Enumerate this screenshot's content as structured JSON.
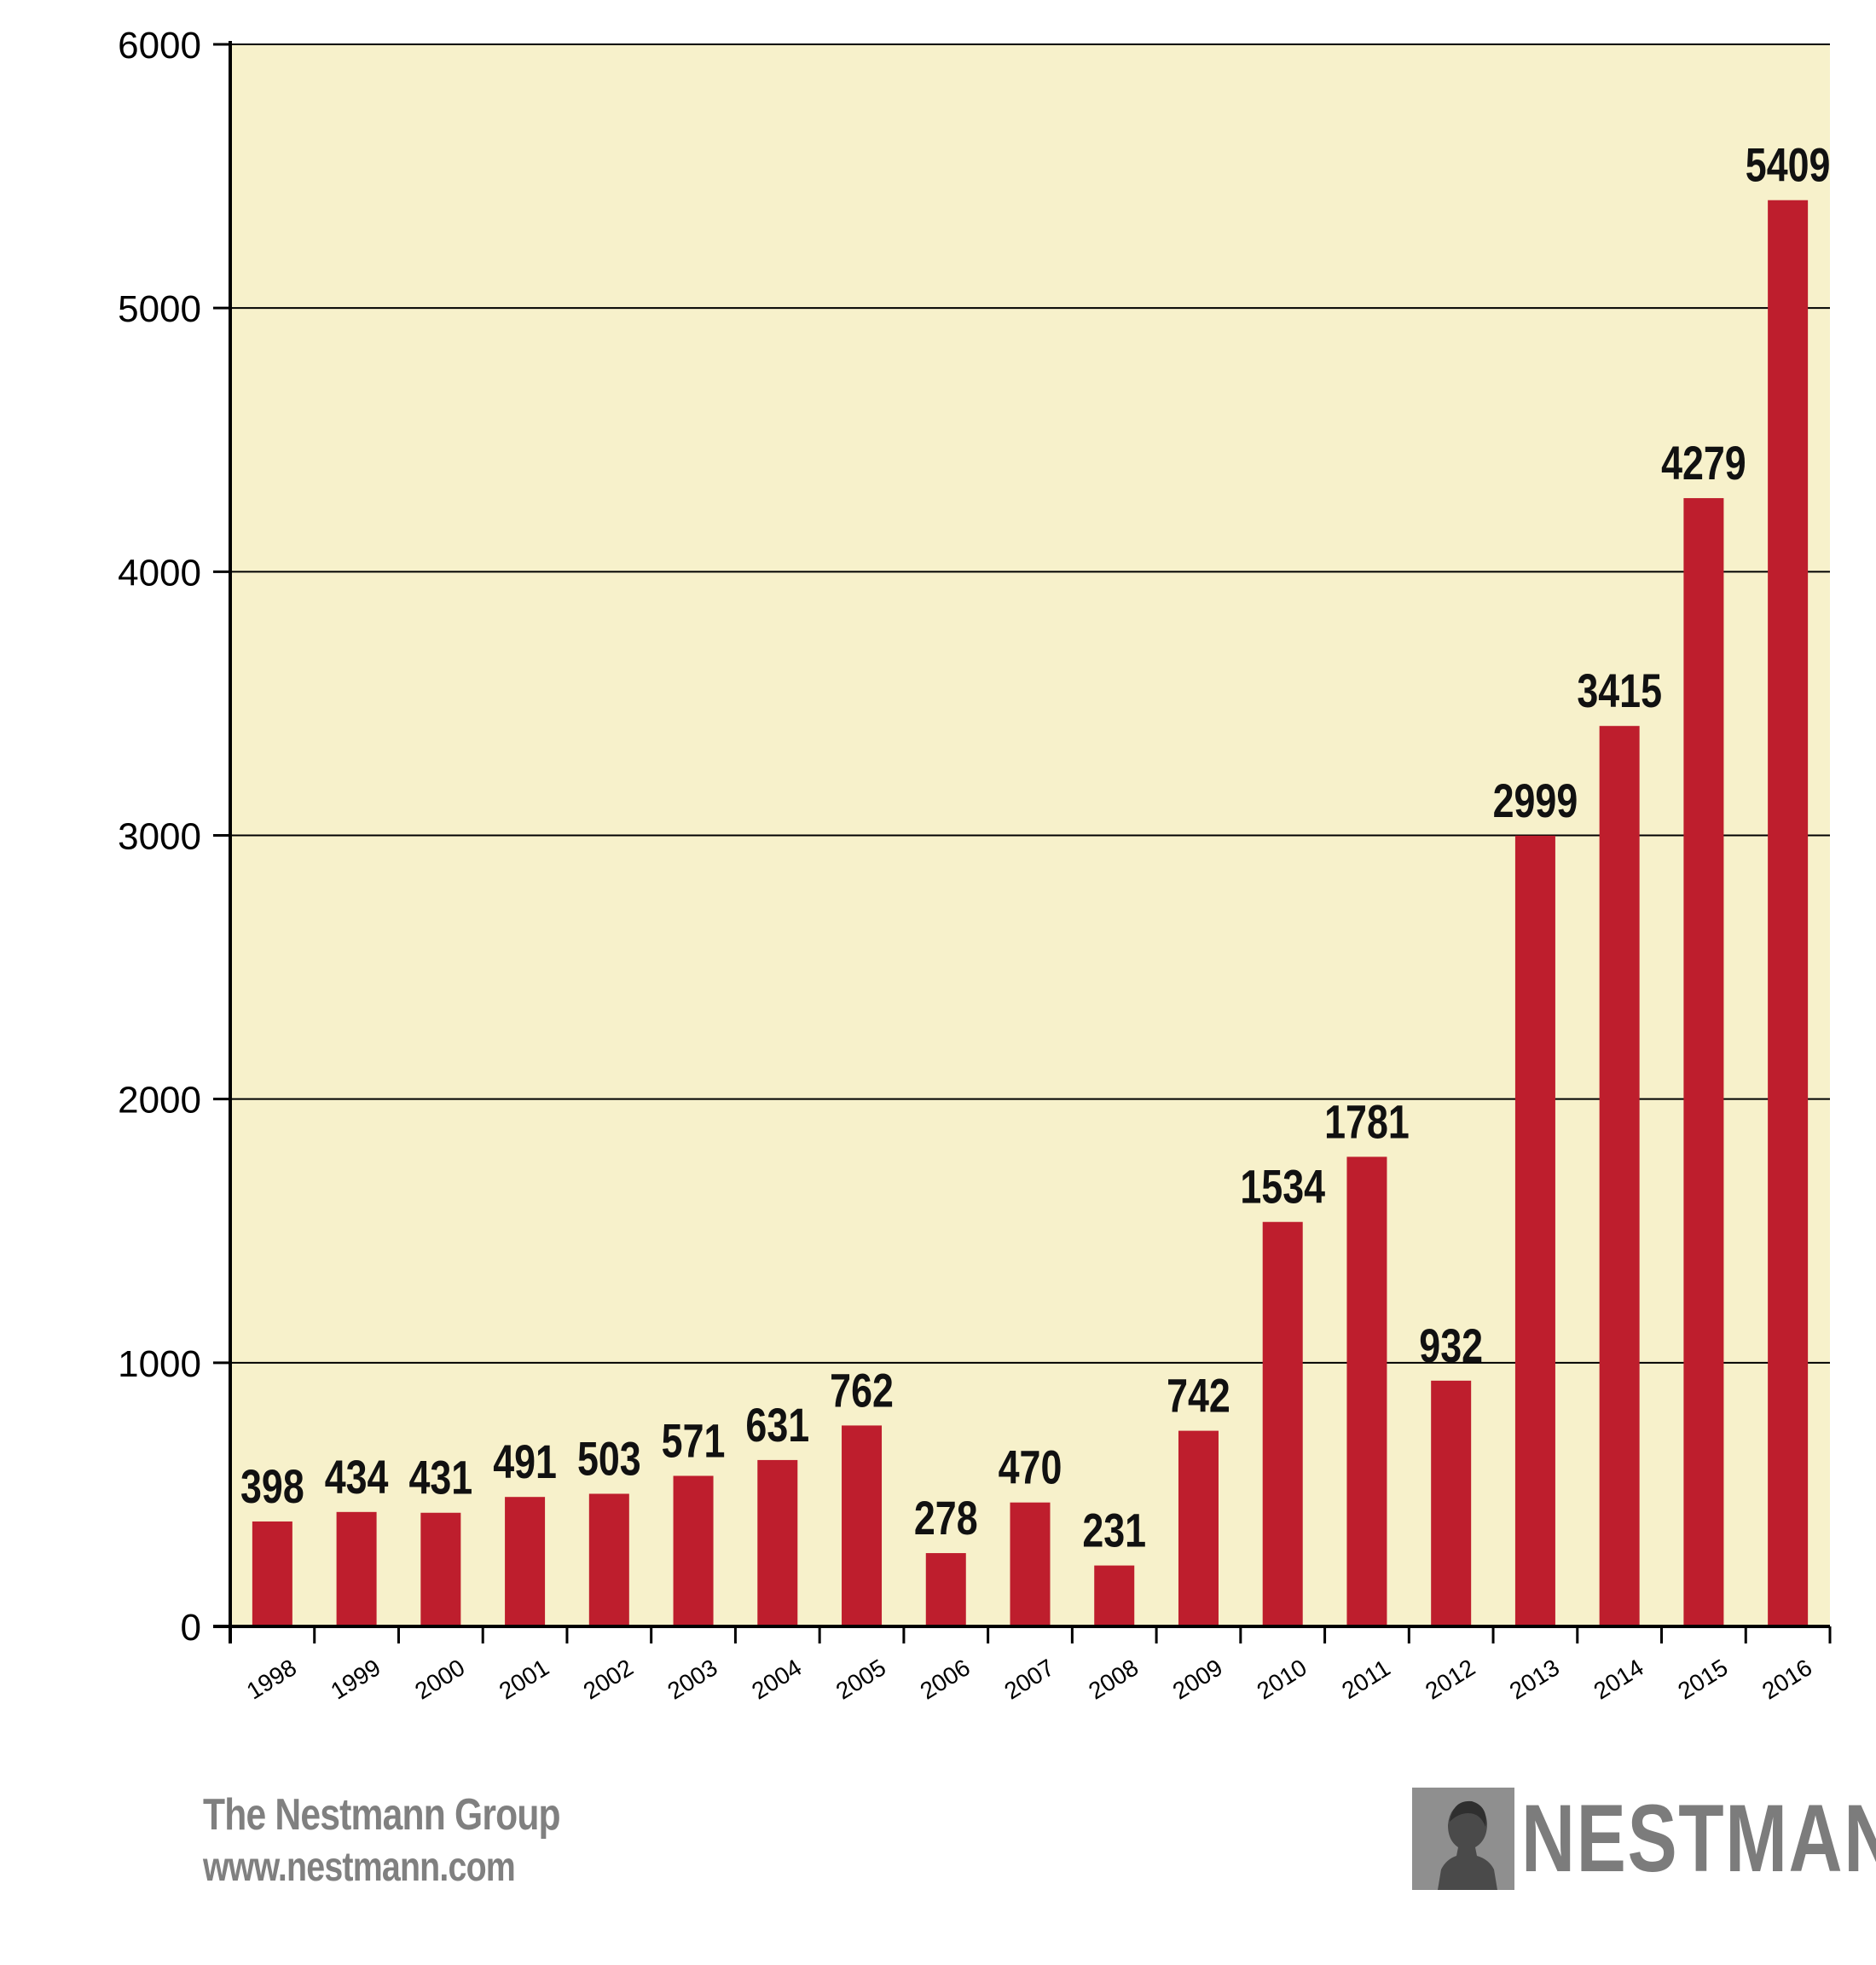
{
  "chart_data": {
    "type": "bar",
    "categories": [
      "1998",
      "1999",
      "2000",
      "2001",
      "2002",
      "2003",
      "2004",
      "2005",
      "2006",
      "2007",
      "2008",
      "2009",
      "2010",
      "2011",
      "2012",
      "2013",
      "2014",
      "2015",
      "2016"
    ],
    "values": [
      398,
      434,
      431,
      491,
      503,
      571,
      631,
      762,
      278,
      470,
      231,
      742,
      1534,
      1781,
      932,
      2999,
      3415,
      4279,
      5409
    ],
    "ylim": [
      0,
      6000
    ],
    "yticks": [
      "0",
      "1000",
      "2000",
      "3000",
      "4000",
      "5000",
      "6000"
    ],
    "grid": true,
    "legend": "none",
    "title": "",
    "xlabel": "",
    "ylabel": ""
  },
  "colors": {
    "plot_background": "#f7f1cb",
    "bar": "#be1e2d",
    "axis": "#000000",
    "footer_text": "#808080"
  },
  "footer": {
    "company": "The Nestmann Group",
    "url": "www.nestmann.com"
  },
  "logo": {
    "wordmark": "NESTMANN",
    "icon": "silhouette-portrait-icon"
  }
}
